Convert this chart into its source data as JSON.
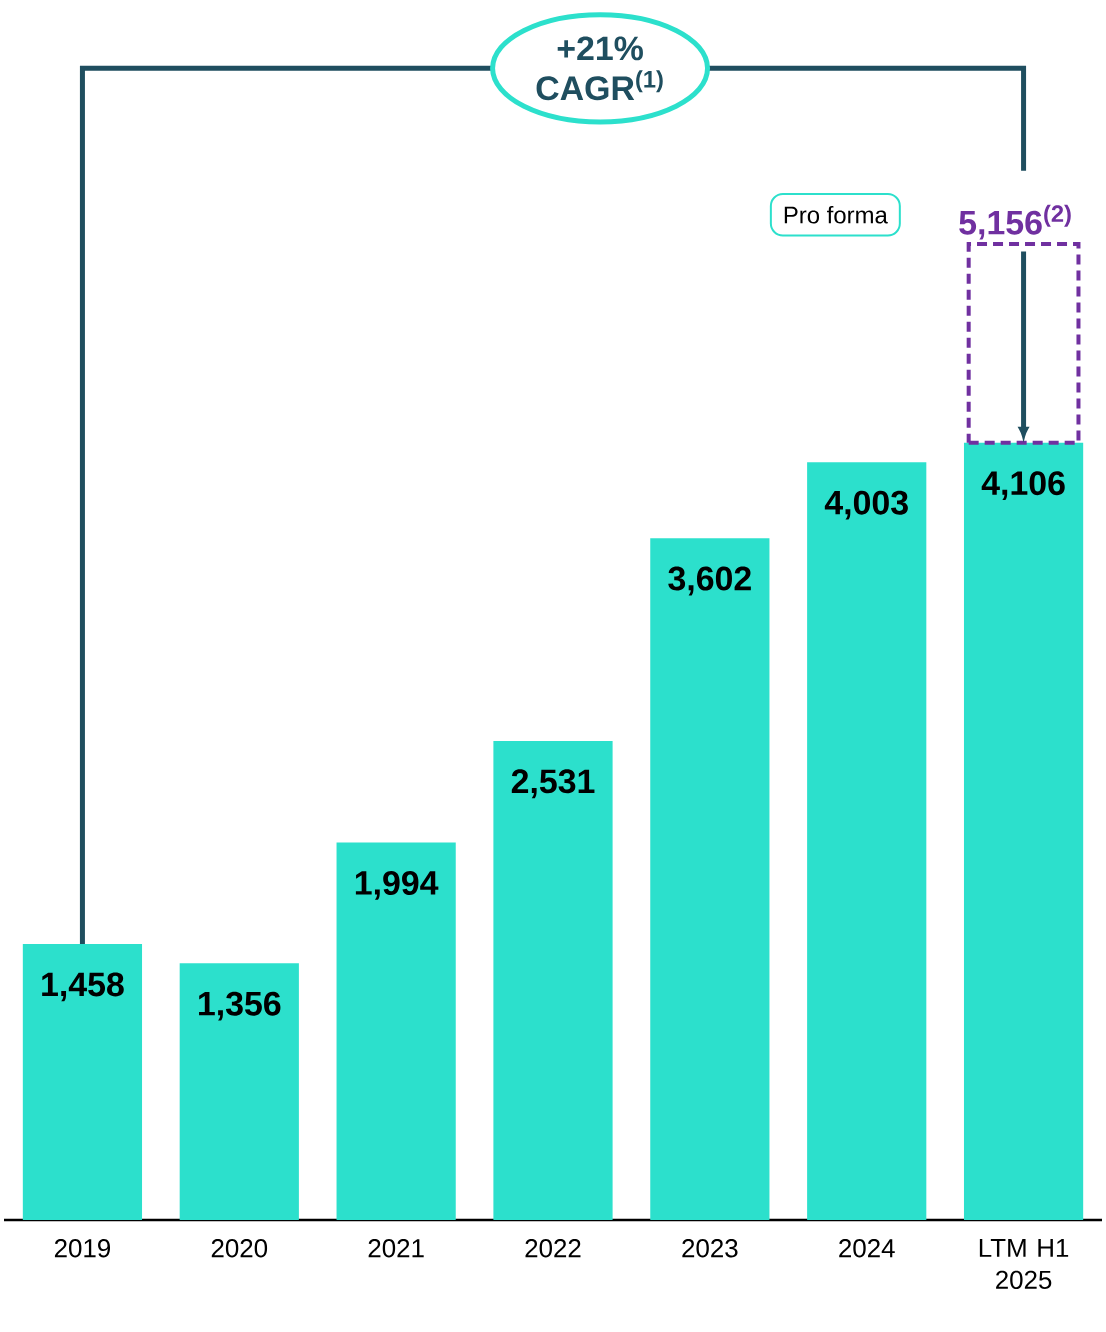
{
  "chart_data": {
    "type": "bar",
    "stacked": true,
    "categories": [
      "2019",
      "2020",
      "2021",
      "2022",
      "2023",
      "2024",
      "LTM H1 2025"
    ],
    "series": [
      {
        "color": "#2ce0cc",
        "values": [
          1458,
          1356,
          1994,
          2531,
          3602,
          4003,
          4106
        ],
        "value_labels": [
          "1,458",
          "1,356",
          "1,994",
          "2,531",
          "3,602",
          "4,003",
          "4,106"
        ]
      },
      {
        "color": "#7030a0",
        "values": [
          null,
          null,
          null,
          null,
          null,
          null,
          1050
        ],
        "line_style": "dashed"
      }
    ],
    "totals": [
      null,
      null,
      null,
      null,
      null,
      null,
      "5,156$^{(2)}$"
    ],
    "annotations": [
      "+21% CAGR$^{(1)}$",
      "Pro forma"
    ]
  }
}
